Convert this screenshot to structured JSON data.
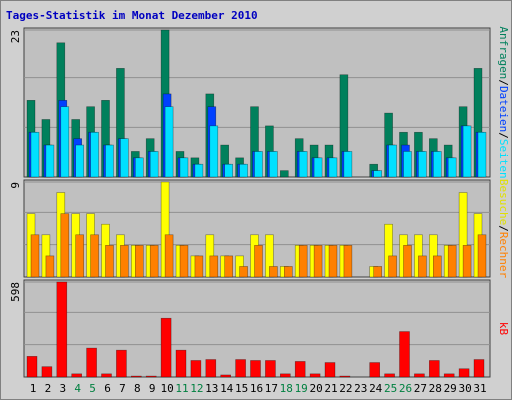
{
  "title": "Tages-Statistik im Monat Dezember 2010",
  "chart_data": [
    {
      "type": "bar",
      "categories": [
        "1",
        "2",
        "3",
        "4",
        "5",
        "6",
        "7",
        "8",
        "9",
        "10",
        "11",
        "12",
        "13",
        "14",
        "15",
        "16",
        "17",
        "18",
        "19",
        "20",
        "21",
        "22",
        "23",
        "24",
        "25",
        "26",
        "27",
        "28",
        "29",
        "30",
        "31"
      ],
      "highlight": {
        "color": "#008040",
        "indices": [
          3,
          4,
          10,
          11,
          17,
          18,
          24,
          25
        ]
      },
      "ylim": [
        0,
        23
      ],
      "yticks": [
        23
      ],
      "legend_separator": "/",
      "series": [
        {
          "name": "Anfragen",
          "color": "#00805c",
          "values": [
            12,
            9,
            21,
            9,
            11,
            12,
            17,
            4,
            6,
            23,
            4,
            3,
            13,
            5,
            3,
            11,
            8,
            1,
            6,
            5,
            5,
            16,
            0,
            2,
            10,
            7,
            7,
            6,
            5,
            11,
            17
          ]
        },
        {
          "name": "Dateien",
          "color": "#0040ff",
          "values": [
            7,
            5,
            12,
            6,
            7,
            5,
            6,
            3,
            4,
            13,
            3,
            2,
            11,
            2,
            2,
            4,
            4,
            0,
            4,
            3,
            3,
            4,
            0,
            1,
            5,
            5,
            4,
            4,
            3,
            8,
            7
          ]
        },
        {
          "name": "Seiten",
          "color": "#00e0ff",
          "values": [
            7,
            5,
            11,
            5,
            7,
            5,
            6,
            3,
            4,
            11,
            3,
            2,
            8,
            2,
            2,
            4,
            4,
            0,
            4,
            3,
            3,
            4,
            0,
            1,
            5,
            4,
            4,
            4,
            3,
            8,
            7
          ]
        }
      ]
    },
    {
      "type": "bar",
      "ylim": [
        0,
        9
      ],
      "yticks": [
        9
      ],
      "legend_separator": "/",
      "series": [
        {
          "name": "Besuche",
          "color": "#ffff00",
          "values": [
            6,
            4,
            8,
            6,
            6,
            5,
            4,
            3,
            3,
            9,
            3,
            2,
            4,
            2,
            2,
            4,
            4,
            1,
            3,
            3,
            3,
            3,
            0,
            1,
            5,
            4,
            4,
            4,
            3,
            8,
            6
          ]
        },
        {
          "name": "Rechner",
          "color": "#ff8000",
          "values": [
            4,
            2,
            6,
            4,
            4,
            3,
            3,
            3,
            3,
            4,
            3,
            2,
            2,
            2,
            1,
            3,
            1,
            1,
            3,
            3,
            3,
            3,
            0,
            1,
            2,
            3,
            2,
            2,
            3,
            3,
            4
          ]
        }
      ]
    },
    {
      "type": "bar",
      "ylim": [
        0,
        598
      ],
      "yticks": [
        598
      ],
      "series": [
        {
          "name": "kB",
          "color": "#ff0000",
          "values": [
            130,
            65,
            598,
            20,
            182,
            20,
            169,
            6,
            6,
            370,
            169,
            104,
            110,
            13,
            110,
            104,
            104,
            20,
            98,
            20,
            91,
            6,
            0,
            91,
            20,
            286,
            20,
            104,
            20,
            52,
            110
          ]
        }
      ]
    }
  ]
}
